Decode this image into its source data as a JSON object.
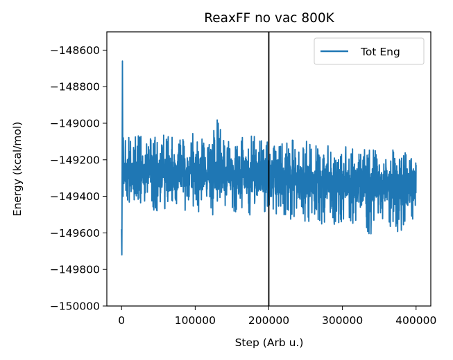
{
  "chart_data": {
    "type": "line",
    "title": "ReaxFF no vac 800K",
    "xlabel": "Step (Arb u.)",
    "ylabel": "Energy (kcal/mol)",
    "xlim": [
      -20000,
      420000
    ],
    "ylim": [
      -150000,
      -148500
    ],
    "xticks": [
      0,
      100000,
      200000,
      300000,
      400000
    ],
    "xtick_labels": [
      "0",
      "100000",
      "200000",
      "300000",
      "400000"
    ],
    "yticks": [
      -150000,
      -149800,
      -149600,
      -149400,
      -149200,
      -149000,
      -148800,
      -148600
    ],
    "ytick_labels": [
      "−150000",
      "−149800",
      "−149600",
      "−149400",
      "−149200",
      "−149000",
      "−148800",
      "−148600"
    ],
    "grid": false,
    "legend_position": "top-right",
    "vline": {
      "x": 200000,
      "color": "#000000"
    },
    "series": [
      {
        "name": "Tot Eng",
        "color": "#1f77b4",
        "x": [
          0,
          400,
          800,
          1200,
          1600,
          2000,
          2400,
          2800,
          3200,
          4000,
          6000,
          10000,
          20000,
          30000,
          40000,
          50000,
          60000,
          70000,
          80000,
          90000,
          100000,
          110000,
          120000,
          130000,
          140000,
          150000,
          160000,
          170000,
          180000,
          190000,
          200000,
          210000,
          220000,
          230000,
          240000,
          250000,
          260000,
          270000,
          280000,
          290000,
          300000,
          310000,
          320000,
          330000,
          340000,
          350000,
          360000,
          370000,
          380000,
          390000,
          400000
        ],
        "values": [
          -149580,
          -149720,
          -149250,
          -148660,
          -149150,
          -149400,
          -149080,
          -149250,
          -149330,
          -149260,
          -149270,
          -149280,
          -149260,
          -149280,
          -149270,
          -149265,
          -149270,
          -149275,
          -149270,
          -149268,
          -149270,
          -149272,
          -149268,
          -149275,
          -149270,
          -149272,
          -149275,
          -149280,
          -149276,
          -149282,
          -149290,
          -149295,
          -149300,
          -149305,
          -149300,
          -149310,
          -149305,
          -149315,
          -149310,
          -149312,
          -149318,
          -149322,
          -149320,
          -149325,
          -149335,
          -149330,
          -149340,
          -149335,
          -149338,
          -149345,
          -149330
        ],
        "min_envelope": [
          -149580,
          -149720,
          -149300,
          -149150,
          -149350,
          -149450,
          -149400,
          -149430,
          -149450,
          -149420,
          -149460,
          -149450,
          -149470,
          -149440,
          -149500,
          -149480,
          -149520,
          -149460,
          -149490,
          -149470,
          -149500,
          -149480,
          -149510,
          -149500,
          -149530,
          -149500,
          -149510,
          -149490,
          -149520,
          -149500,
          -149510,
          -149530,
          -149500,
          -149540,
          -149510,
          -149560,
          -149520,
          -149560,
          -149530,
          -149570,
          -149540,
          -149560,
          -149550,
          -149580,
          -149650,
          -149560,
          -149580,
          -149570,
          -149640,
          -149580,
          -149560
        ],
        "max_envelope": [
          -149580,
          -149720,
          -149180,
          -148660,
          -149050,
          -149100,
          -149080,
          -149090,
          -149100,
          -149080,
          -149050,
          -149060,
          -149050,
          -149080,
          -149040,
          -149070,
          -149060,
          -149070,
          -149080,
          -149050,
          -149060,
          -149080,
          -149070,
          -148980,
          -149080,
          -149070,
          -149020,
          -149080,
          -149050,
          -149060,
          -149100,
          -149080,
          -149110,
          -149070,
          -149120,
          -149090,
          -149110,
          -149120,
          -149100,
          -149130,
          -149120,
          -149140,
          -149110,
          -149130,
          -149150,
          -149130,
          -149140,
          -149140,
          -149170,
          -149130,
          -149210
        ]
      }
    ]
  }
}
